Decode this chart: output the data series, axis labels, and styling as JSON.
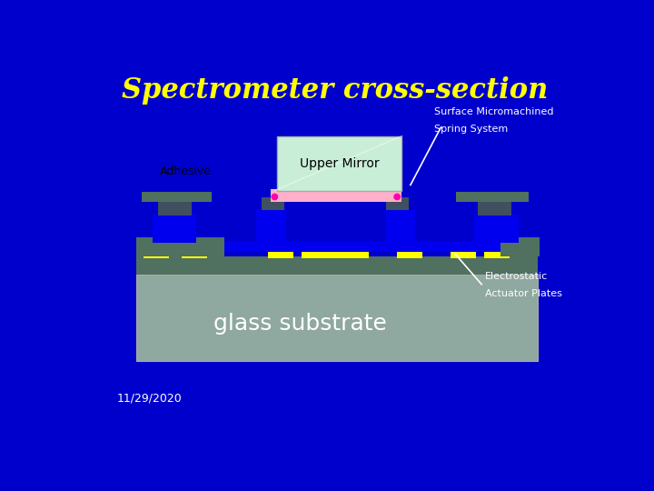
{
  "title": "Spectrometer cross-section",
  "title_color": "#FFFF00",
  "bg_color": "#0000CC",
  "date_text": "11/29/2020",
  "date_color": "#FFFFFF",
  "substrate_color": "#8FA8A0",
  "substrate_label": "glass substrate",
  "substrate_label_color": "#FFFFFF",
  "upper_mirror_color": "#C8EED8",
  "upper_mirror_label": "Upper Mirror",
  "upper_mirror_border": "#AAAAAA",
  "adhesive_label": "Adhesive",
  "adhesive_label_color": "#000000",
  "pink_layer_color": "#FFB0C8",
  "blue_base_color": "#0000EE",
  "dark_gray_color": "#405060",
  "teal_color": "#507060",
  "yellow_stripe_color": "#FFFF00",
  "spring_label": "Surface Micromachined\nSpring System",
  "spring_label_color": "#FFFFFF",
  "electrostatic_label": "Electrostatic\nActuator Plates",
  "electrostatic_label_color": "#FFFFFF",
  "magenta_dot_color": "#FF00AA"
}
